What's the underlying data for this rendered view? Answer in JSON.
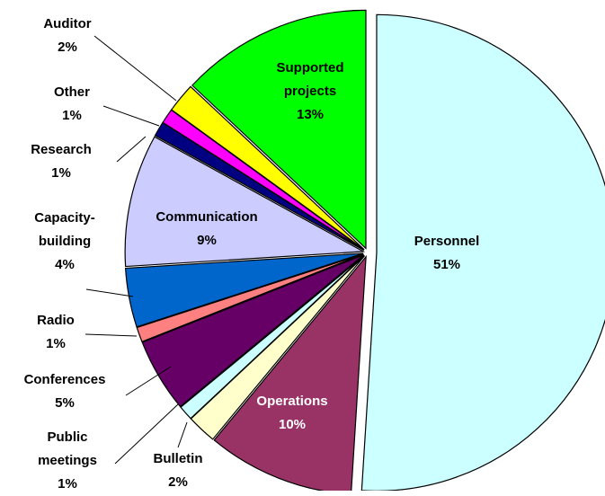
{
  "chart_data": {
    "type": "pie",
    "categories": [
      "Personnel",
      "Operations",
      "Bulletin",
      "Public meetings",
      "Conferences",
      "Radio",
      "Capacity-building",
      "Communication",
      "Research",
      "Other",
      "Auditor",
      "Supported projects"
    ],
    "values": [
      51,
      10,
      2,
      1,
      5,
      1,
      4,
      9,
      1,
      1,
      2,
      13
    ],
    "value_labels": [
      "51%",
      "10%",
      "2%",
      "1%",
      "5%",
      "1%",
      "4%",
      "9%",
      "1%",
      "1%",
      "2%",
      "13%"
    ],
    "colors": [
      "#ccffff",
      "#993366",
      "#ffffcc",
      "#ccffff",
      "#660066",
      "#ff8080",
      "#0066cc",
      "#ccccff",
      "#000080",
      "#ff00ff",
      "#ffff00",
      "#00ff00"
    ]
  }
}
